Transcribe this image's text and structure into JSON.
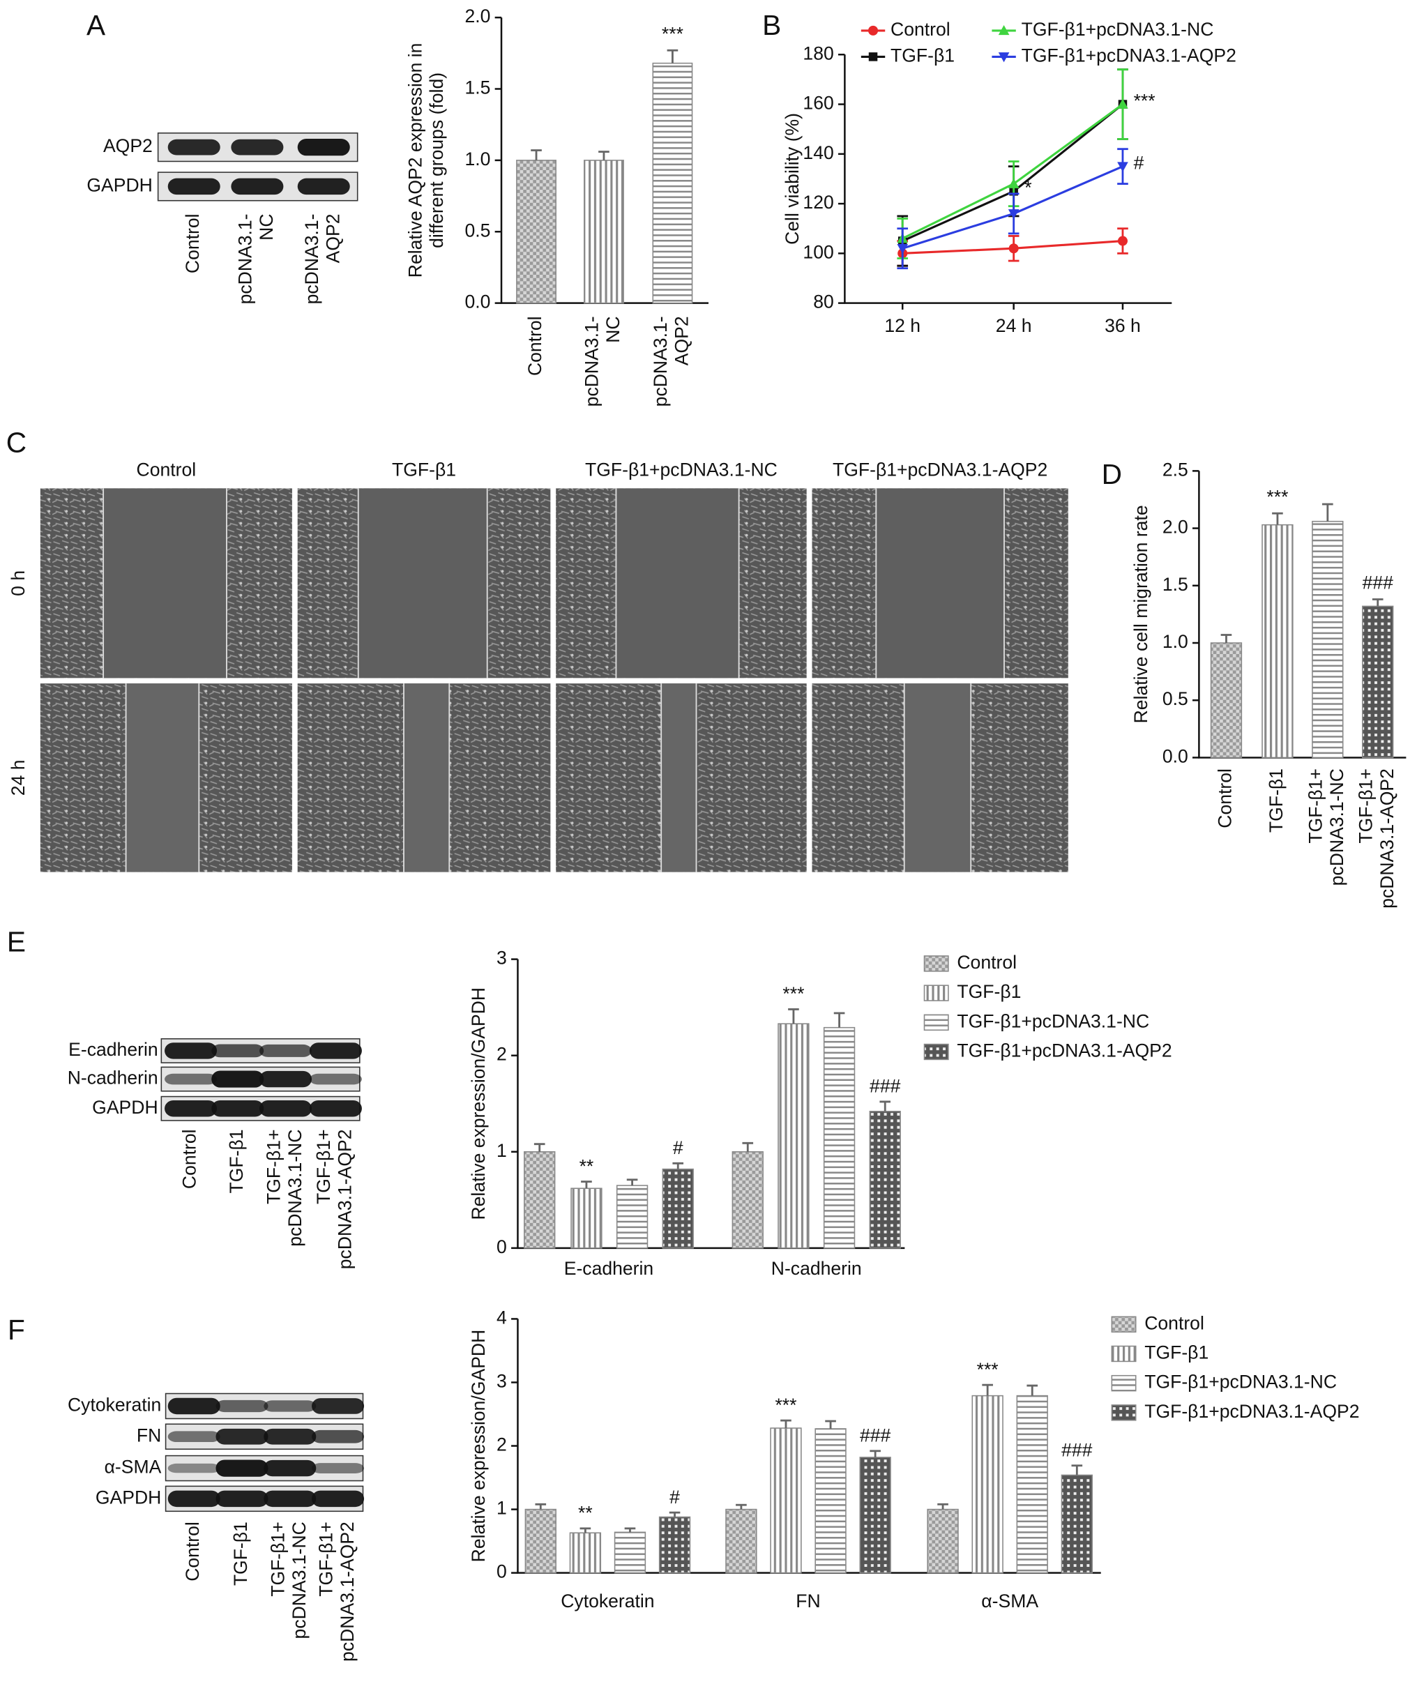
{
  "panel_labels": [
    "A",
    "B",
    "C",
    "D",
    "E",
    "F"
  ],
  "blots": [
    {
      "rows": [
        "AQP2",
        "GAPDH"
      ],
      "lanes": [
        "Control",
        "pcDNA3.1-\nNC",
        "pcDNA3.1-\nAQP2"
      ]
    },
    {
      "rows": [
        "E-cadherin",
        "N-cadherin",
        "GAPDH"
      ],
      "lanes": [
        "Control",
        "TGF-β1",
        "TGF-β1+\npcDNA3.1-NC",
        "TGF-β1+\npcDNA3.1-AQP2"
      ]
    },
    {
      "rows": [
        "Cytokeratin",
        "FN",
        "α-SMA",
        "GAPDH"
      ],
      "lanes": [
        "Control",
        "TGF-β1",
        "TGF-β1+\npcDNA3.1-NC",
        "TGF-β1+\npcDNA3.1-AQP2"
      ]
    }
  ],
  "micrographs": {
    "columns": [
      "Control",
      "TGF-β1",
      "TGF-β1+pcDNA3.1-NC",
      "TGF-β1+pcDNA3.1-AQP2"
    ],
    "rows": [
      "0 h",
      "24 h"
    ]
  },
  "chart_data": [
    {
      "type": "bar",
      "y_label": "Relative AQP2 expression in\ndifferent groups (fold)",
      "categories": [
        "Control",
        "pcDNA3.1-\nNC",
        "pcDNA3.1-\nAQP2"
      ],
      "values": [
        1.0,
        1.0,
        1.68
      ],
      "errors": [
        0.07,
        0.06,
        0.09
      ],
      "annotations": [
        null,
        null,
        "***"
      ],
      "color": "#888888",
      "patterns": [
        "checker",
        "vertical",
        "horizontal"
      ],
      "ylim": [
        0,
        2
      ],
      "yticks": [
        {
          "value": 0,
          "label": "0.0"
        },
        {
          "value": 0.5,
          "label": "0.5"
        },
        {
          "value": 1,
          "label": "1.0"
        },
        {
          "value": 1.5,
          "label": "1.5"
        },
        {
          "value": 2,
          "label": "2.0"
        }
      ]
    },
    {
      "type": "line",
      "y_label": "Cell viability (%)",
      "categories": [
        "12 h",
        "24 h",
        "36 h"
      ],
      "series": [
        {
          "name": "Control",
          "color": "#e8292a",
          "marker": "circle",
          "values": [
            100,
            102,
            105
          ],
          "errors": [
            5,
            5,
            5
          ],
          "annotations": [
            null,
            null,
            null
          ]
        },
        {
          "name": "TGF-β1",
          "color": "#111111",
          "marker": "square",
          "values": [
            105,
            125,
            160
          ],
          "errors": [
            10,
            10,
            14
          ],
          "annotations": [
            null,
            "*",
            "***"
          ]
        },
        {
          "name": "TGF-β1+pcDNA3.1-NC",
          "color": "#3fd43f",
          "marker": "triangle-up",
          "values": [
            106,
            128,
            160
          ],
          "errors": [
            8,
            9,
            14
          ],
          "annotations": [
            null,
            null,
            null
          ]
        },
        {
          "name": "TGF-β1+pcDNA3.1-AQP2",
          "color": "#2b3de0",
          "marker": "triangle-down",
          "values": [
            102,
            116,
            135
          ],
          "errors": [
            8,
            8,
            7
          ],
          "annotations": [
            null,
            null,
            "#"
          ]
        }
      ],
      "ylim": [
        80,
        180
      ],
      "yticks": [
        80,
        100,
        120,
        140,
        160,
        180
      ],
      "legend": "top"
    },
    {
      "type": "bar",
      "y_label": "Relative cell migration rate",
      "categories": [
        "Control",
        "TGF-β1",
        "TGF-β1+\npcDNA3.1-NC",
        "TGF-β1+\npcDNA3.1-AQP2"
      ],
      "values": [
        1.0,
        2.03,
        2.06,
        1.32
      ],
      "errors": [
        0.07,
        0.1,
        0.15,
        0.06
      ],
      "annotations": [
        null,
        "***",
        null,
        "###"
      ],
      "color": "#888888",
      "patterns": [
        "checker",
        "vertical",
        "horizontal",
        "grid"
      ],
      "ylim": [
        0,
        2.5
      ],
      "yticks": [
        {
          "value": 0,
          "label": "0.0"
        },
        {
          "value": 0.5,
          "label": "0.5"
        },
        {
          "value": 1,
          "label": "1.0"
        },
        {
          "value": 1.5,
          "label": "1.5"
        },
        {
          "value": 2,
          "label": "2.0"
        },
        {
          "value": 2.5,
          "label": "2.5"
        }
      ]
    },
    {
      "type": "bar",
      "y_label": "Relative expression/GAPDH",
      "categories": [
        "E-cadherin",
        "N-cadherin"
      ],
      "series": [
        {
          "name": "Control",
          "color": "#888888",
          "pattern": "checker",
          "values": [
            1.0,
            1.0
          ],
          "errors": [
            0.08,
            0.09
          ],
          "annotations": [
            null,
            null
          ]
        },
        {
          "name": "TGF-β1",
          "color": "#888888",
          "pattern": "vertical",
          "values": [
            0.62,
            2.33
          ],
          "errors": [
            0.07,
            0.15
          ],
          "annotations": [
            "**",
            "***"
          ]
        },
        {
          "name": "TGF-β1+pcDNA3.1-NC",
          "color": "#888888",
          "pattern": "horizontal",
          "values": [
            0.65,
            2.29
          ],
          "errors": [
            0.06,
            0.15
          ],
          "annotations": [
            null,
            null
          ]
        },
        {
          "name": "TGF-β1+pcDNA3.1-AQP2",
          "color": "#888888",
          "pattern": "grid",
          "values": [
            0.82,
            1.42
          ],
          "errors": [
            0.06,
            0.1
          ],
          "annotations": [
            "#",
            "###"
          ]
        }
      ],
      "ylim": [
        0,
        3
      ],
      "yticks": [
        0,
        1,
        2,
        3
      ],
      "legend": "right"
    },
    {
      "type": "bar",
      "y_label": "Relative expression/GAPDH",
      "categories": [
        "Cytokeratin",
        "FN",
        "α-SMA"
      ],
      "series": [
        {
          "name": "Control",
          "color": "#888888",
          "pattern": "checker",
          "values": [
            1.0,
            1.0,
            1.0
          ],
          "errors": [
            0.08,
            0.07,
            0.08
          ],
          "annotations": [
            null,
            null,
            null
          ]
        },
        {
          "name": "TGF-β1",
          "color": "#888888",
          "pattern": "vertical",
          "values": [
            0.63,
            2.28,
            2.79
          ],
          "errors": [
            0.07,
            0.12,
            0.17
          ],
          "annotations": [
            "**",
            "***",
            "***"
          ]
        },
        {
          "name": "TGF-β1+pcDNA3.1-NC",
          "color": "#888888",
          "pattern": "horizontal",
          "values": [
            0.64,
            2.27,
            2.79
          ],
          "errors": [
            0.06,
            0.12,
            0.16
          ],
          "annotations": [
            null,
            null,
            null
          ]
        },
        {
          "name": "TGF-β1+pcDNA3.1-AQP2",
          "color": "#888888",
          "pattern": "grid",
          "values": [
            0.88,
            1.82,
            1.54
          ],
          "errors": [
            0.07,
            0.1,
            0.15
          ],
          "annotations": [
            "#",
            "###",
            "###"
          ]
        }
      ],
      "ylim": [
        0,
        4
      ],
      "yticks": [
        0,
        1,
        2,
        3,
        4
      ],
      "legend": "right"
    }
  ]
}
